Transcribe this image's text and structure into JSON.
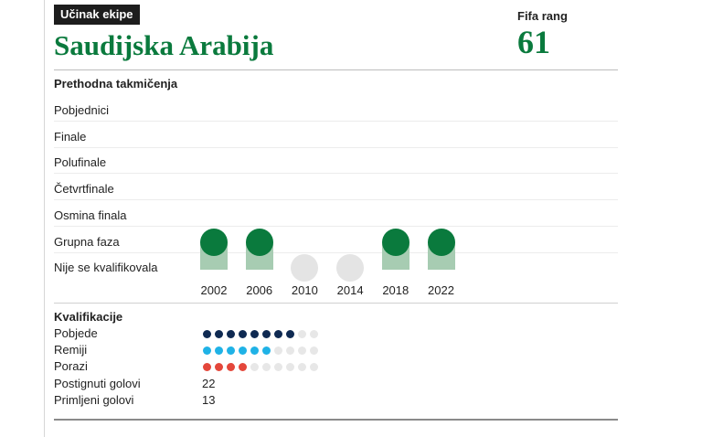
{
  "header": {
    "tag": "Učinak ekipe",
    "country": "Saudijska Arabija",
    "fifa_label": "Fifa rang",
    "fifa_rank": "61"
  },
  "previous": {
    "title": "Prethodna takmičenja"
  },
  "chart_data": {
    "type": "dot-timeline",
    "stages": [
      "Pobjednici",
      "Finale",
      "Polufinale",
      "Četvrtfinale",
      "Osmina finala",
      "Grupna faza",
      "Nije se kvalifikovala"
    ],
    "years": [
      "2002",
      "2006",
      "2010",
      "2014",
      "2018",
      "2022"
    ],
    "results": [
      "Grupna faza",
      "Grupna faza",
      "Nije se kvalifikovala",
      "Nije se kvalifikovala",
      "Grupna faza",
      "Grupna faza"
    ]
  },
  "qualification": {
    "title": "Kvalifikacije",
    "total_slots": 10,
    "wins": {
      "label": "Pobjede",
      "value": 8,
      "color": "#0f2a52"
    },
    "draws": {
      "label": "Remiji",
      "value": 6,
      "color": "#1fb2e6"
    },
    "losses": {
      "label": "Porazi",
      "value": 4,
      "color": "#e4473b"
    },
    "empty_color": "#e7e7e7",
    "goals_for": {
      "label": "Postignuti golovi",
      "value": "22"
    },
    "goals_against": {
      "label": "Primljeni golovi",
      "value": "13"
    }
  },
  "colors": {
    "green": "#0a7a3d",
    "bar": "#a7ccb2",
    "dnq": "#e4e4e4"
  }
}
